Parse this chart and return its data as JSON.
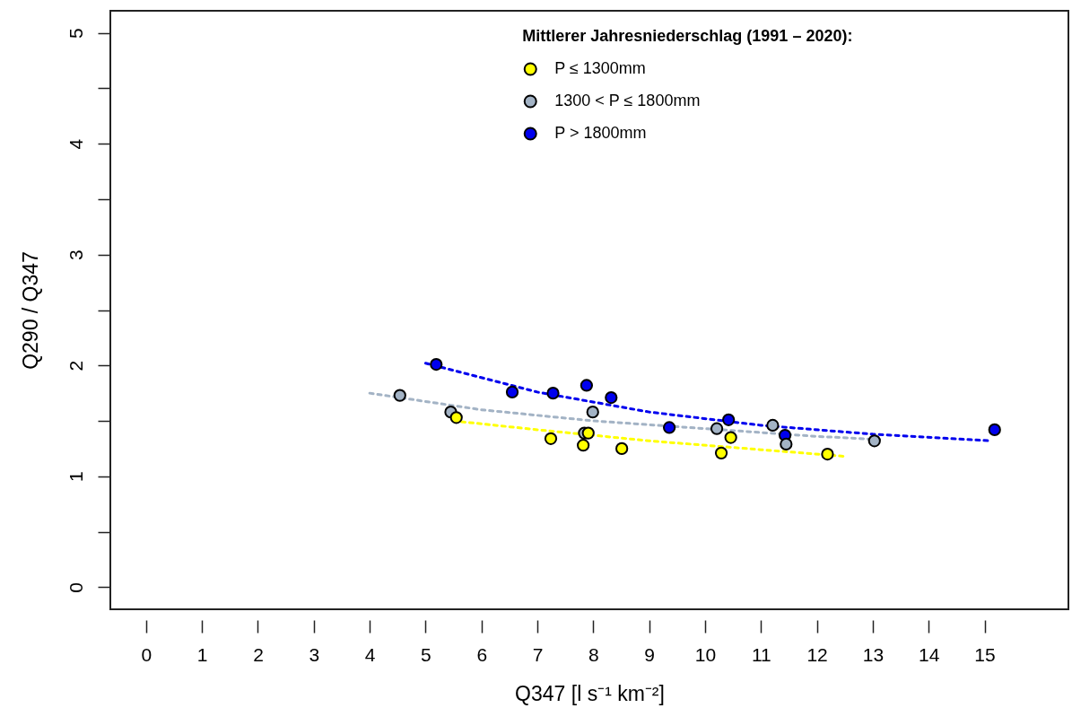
{
  "chart_data": {
    "type": "scatter",
    "xlabel": "Q347 [l s⁻¹ km⁻²]",
    "ylabel": "Q290 / Q347",
    "legend_title": "Mittlerer Jahresniederschlag (1991 – 2020):",
    "legend": "top",
    "marker": "circle",
    "grid": false,
    "xlim": [
      -0.64,
      16.5
    ],
    "ylim": [
      -0.2,
      5.2
    ],
    "xticks": [
      0,
      1,
      2,
      3,
      4,
      5,
      6,
      7,
      8,
      9,
      10,
      11,
      12,
      13,
      14,
      15
    ],
    "yticks": [
      0,
      {
        "value": 0.5,
        "label": null
      },
      1,
      {
        "value": 1.5,
        "label": null
      },
      2,
      {
        "value": 2.5,
        "label": null
      },
      3,
      {
        "value": 3.5,
        "label": null
      },
      4,
      {
        "value": 4.5,
        "label": null
      },
      5
    ],
    "series": [
      {
        "type": "line",
        "marker": "none",
        "line_style": "dotted",
        "color": "#ffff00",
        "x": [
          5.5,
          7,
          9,
          11,
          12.5
        ],
        "values": [
          1.5,
          1.42,
          1.32,
          1.24,
          1.18
        ]
      },
      {
        "type": "line",
        "marker": "none",
        "line_style": "dotted",
        "color": "#a3b3c5",
        "x": [
          4,
          6,
          8,
          10,
          12,
          13.2
        ],
        "values": [
          1.75,
          1.6,
          1.5,
          1.43,
          1.36,
          1.33
        ]
      },
      {
        "type": "line",
        "marker": "none",
        "line_style": "dotted",
        "color": "#0000ee",
        "x": [
          5,
          7,
          9,
          11,
          13,
          15.1
        ],
        "values": [
          2.02,
          1.76,
          1.58,
          1.46,
          1.38,
          1.32
        ]
      },
      {
        "name": "P ≤ 1300mm",
        "color": "#ffff00",
        "x": [
          5.55,
          7.24,
          7.82,
          7.91,
          8.51,
          10.29,
          10.46,
          12.19
        ],
        "values": [
          1.53,
          1.34,
          1.28,
          1.39,
          1.25,
          1.21,
          1.35,
          1.2
        ]
      },
      {
        "name": "1300 < P ≤ 1800mm",
        "color": "#a3b3c5",
        "x": [
          4.54,
          5.45,
          7.84,
          7.99,
          10.21,
          11.21,
          11.45,
          13.03
        ],
        "values": [
          1.73,
          1.58,
          1.39,
          1.58,
          1.43,
          1.46,
          1.29,
          1.32
        ]
      },
      {
        "name": "P > 1800mm",
        "color": "#0000ee",
        "x": [
          5.19,
          6.55,
          7.28,
          7.88,
          8.32,
          9.36,
          10.42,
          11.43,
          15.18
        ],
        "values": [
          2.01,
          1.76,
          1.75,
          1.82,
          1.71,
          1.44,
          1.51,
          1.37,
          1.42
        ]
      }
    ]
  }
}
